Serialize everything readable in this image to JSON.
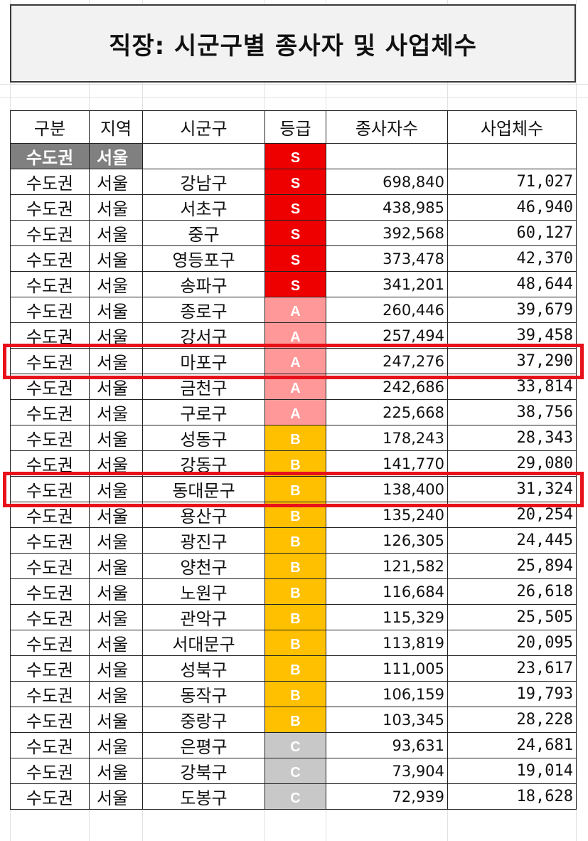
{
  "title": "직장: 시군구별 종사자 및 사업체수",
  "headers": {
    "region": "구분",
    "area": "지역",
    "district": "시군구",
    "grade": "등급",
    "workers": "종사자수",
    "businesses": "사업체수"
  },
  "summary_row": {
    "region": "수도권",
    "area": "서울",
    "grade": "S"
  },
  "grade_colors": {
    "S": "#ee0000",
    "A": "#ff9999",
    "B": "#ffc000",
    "C": "#c8c8c8"
  },
  "highlight_color": "#e8101a",
  "highlighted_districts": [
    "마포구",
    "동대문구"
  ],
  "rows": [
    {
      "region": "수도권",
      "area": "서울",
      "district": "강남구",
      "grade": "S",
      "workers": "698,840",
      "businesses": "71,027"
    },
    {
      "region": "수도권",
      "area": "서울",
      "district": "서초구",
      "grade": "S",
      "workers": "438,985",
      "businesses": "46,940"
    },
    {
      "region": "수도권",
      "area": "서울",
      "district": "중구",
      "grade": "S",
      "workers": "392,568",
      "businesses": "60,127"
    },
    {
      "region": "수도권",
      "area": "서울",
      "district": "영등포구",
      "grade": "S",
      "workers": "373,478",
      "businesses": "42,370"
    },
    {
      "region": "수도권",
      "area": "서울",
      "district": "송파구",
      "grade": "S",
      "workers": "341,201",
      "businesses": "48,644"
    },
    {
      "region": "수도권",
      "area": "서울",
      "district": "종로구",
      "grade": "A",
      "workers": "260,446",
      "businesses": "39,679"
    },
    {
      "region": "수도권",
      "area": "서울",
      "district": "강서구",
      "grade": "A",
      "workers": "257,494",
      "businesses": "39,458"
    },
    {
      "region": "수도권",
      "area": "서울",
      "district": "마포구",
      "grade": "A",
      "workers": "247,276",
      "businesses": "37,290"
    },
    {
      "region": "수도권",
      "area": "서울",
      "district": "금천구",
      "grade": "A",
      "workers": "242,686",
      "businesses": "33,814"
    },
    {
      "region": "수도권",
      "area": "서울",
      "district": "구로구",
      "grade": "A",
      "workers": "225,668",
      "businesses": "38,756"
    },
    {
      "region": "수도권",
      "area": "서울",
      "district": "성동구",
      "grade": "B",
      "workers": "178,243",
      "businesses": "28,343"
    },
    {
      "region": "수도권",
      "area": "서울",
      "district": "강동구",
      "grade": "B",
      "workers": "141,770",
      "businesses": "29,080"
    },
    {
      "region": "수도권",
      "area": "서울",
      "district": "동대문구",
      "grade": "B",
      "workers": "138,400",
      "businesses": "31,324"
    },
    {
      "region": "수도권",
      "area": "서울",
      "district": "용산구",
      "grade": "B",
      "workers": "135,240",
      "businesses": "20,254"
    },
    {
      "region": "수도권",
      "area": "서울",
      "district": "광진구",
      "grade": "B",
      "workers": "126,305",
      "businesses": "24,445"
    },
    {
      "region": "수도권",
      "area": "서울",
      "district": "양천구",
      "grade": "B",
      "workers": "121,582",
      "businesses": "25,894"
    },
    {
      "region": "수도권",
      "area": "서울",
      "district": "노원구",
      "grade": "B",
      "workers": "116,684",
      "businesses": "26,618"
    },
    {
      "region": "수도권",
      "area": "서울",
      "district": "관악구",
      "grade": "B",
      "workers": "115,329",
      "businesses": "25,505"
    },
    {
      "region": "수도권",
      "area": "서울",
      "district": "서대문구",
      "grade": "B",
      "workers": "113,819",
      "businesses": "20,095"
    },
    {
      "region": "수도권",
      "area": "서울",
      "district": "성북구",
      "grade": "B",
      "workers": "111,005",
      "businesses": "23,617"
    },
    {
      "region": "수도권",
      "area": "서울",
      "district": "동작구",
      "grade": "B",
      "workers": "106,159",
      "businesses": "19,793"
    },
    {
      "region": "수도권",
      "area": "서울",
      "district": "중랑구",
      "grade": "B",
      "workers": "103,345",
      "businesses": "28,228"
    },
    {
      "region": "수도권",
      "area": "서울",
      "district": "은평구",
      "grade": "C",
      "workers": "93,631",
      "businesses": "24,681"
    },
    {
      "region": "수도권",
      "area": "서울",
      "district": "강북구",
      "grade": "C",
      "workers": "73,904",
      "businesses": "19,014"
    },
    {
      "region": "수도권",
      "area": "서울",
      "district": "도봉구",
      "grade": "C",
      "workers": "72,939",
      "businesses": "18,628"
    }
  ]
}
